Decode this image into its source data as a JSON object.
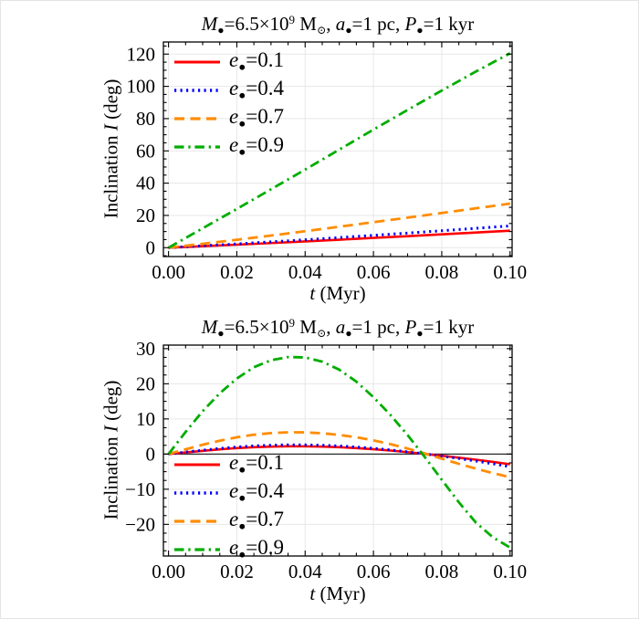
{
  "figure": {
    "background": "#ffffff",
    "frame_color": "#000000",
    "grid_color": "#e7e7e7",
    "zero_line_color": "#2b2b2b",
    "text_color": "#000000"
  },
  "chart_data": [
    {
      "type": "line",
      "title": "M●=6.5×10⁹ M⊙, a●=1 pc, P●=1 kyr",
      "title_tokens": [
        {
          "k": "i",
          "v": "M"
        },
        {
          "k": "sub",
          "v": "●"
        },
        {
          "k": "t",
          "v": "=6.5×10"
        },
        {
          "k": "sup",
          "v": "9"
        },
        {
          "k": "t",
          "v": " M"
        },
        {
          "k": "sub",
          "v": "⊙"
        },
        {
          "k": "t",
          "v": ", "
        },
        {
          "k": "i",
          "v": "a"
        },
        {
          "k": "sub",
          "v": "●"
        },
        {
          "k": "t",
          "v": "=1 pc, "
        },
        {
          "k": "i",
          "v": "P"
        },
        {
          "k": "sub",
          "v": "●"
        },
        {
          "k": "t",
          "v": "=1 kyr"
        }
      ],
      "xlabel": "t (Myr)",
      "xlabel_tokens": [
        {
          "k": "i",
          "v": "t"
        },
        {
          "k": "t",
          "v": "  (Myr)"
        }
      ],
      "ylabel": "Inclination I (deg)",
      "ylabel_tokens": [
        {
          "k": "t",
          "v": "Inclination  "
        },
        {
          "k": "i",
          "v": "I"
        },
        {
          "k": "t",
          "v": " (deg)"
        }
      ],
      "xlim": [
        0,
        0.1
      ],
      "ylim": [
        0,
        120
      ],
      "grid": true,
      "zero_line": false,
      "legend_position": "top-left",
      "x_axis": {
        "ticks": [
          0,
          0.02,
          0.04,
          0.06,
          0.08,
          0.1
        ],
        "labels": [
          "0.00",
          "0.02",
          "0.04",
          "0.06",
          "0.08",
          "0.10"
        ],
        "minor_step": 0.005
      },
      "y_axis": {
        "ticks": [
          0,
          20,
          40,
          60,
          80,
          100,
          120
        ],
        "labels": [
          "0",
          "20",
          "40",
          "60",
          "80",
          "100",
          "120"
        ],
        "minor_step": 5
      },
      "x": [
        0,
        0.01,
        0.02,
        0.03,
        0.04,
        0.05,
        0.06,
        0.07,
        0.08,
        0.09,
        0.1
      ],
      "series": [
        {
          "name": "e●=0.1",
          "label_tokens": [
            {
              "k": "i",
              "v": "e"
            },
            {
              "k": "sub",
              "v": "●"
            },
            {
              "k": "t",
              "v": "=0.1"
            }
          ],
          "color": "#ff0000",
          "dash": "solid",
          "width": 2.6,
          "y": [
            0,
            0.9,
            1.85,
            2.85,
            3.9,
            4.95,
            6.05,
            7.15,
            8.25,
            9.4,
            10.5
          ]
        },
        {
          "name": "e●=0.4",
          "label_tokens": [
            {
              "k": "i",
              "v": "e"
            },
            {
              "k": "sub",
              "v": "●"
            },
            {
              "k": "t",
              "v": "=0.4"
            }
          ],
          "color": "#0000ff",
          "dash": "dotted",
          "width": 3.0,
          "y": [
            0,
            1.15,
            2.35,
            3.6,
            4.9,
            6.25,
            7.65,
            9.05,
            10.5,
            12.0,
            13.5
          ]
        },
        {
          "name": "e●=0.7",
          "label_tokens": [
            {
              "k": "i",
              "v": "e"
            },
            {
              "k": "sub",
              "v": "●"
            },
            {
              "k": "t",
              "v": "=0.7"
            }
          ],
          "color": "#ff8c00",
          "dash": "dashed",
          "width": 2.8,
          "y": [
            0,
            2.4,
            4.9,
            7.5,
            10.2,
            13.0,
            15.8,
            18.6,
            21.5,
            24.4,
            27.3
          ]
        },
        {
          "name": "e●=0.9",
          "label_tokens": [
            {
              "k": "i",
              "v": "e"
            },
            {
              "k": "sub",
              "v": "●"
            },
            {
              "k": "t",
              "v": "=0.9"
            }
          ],
          "color": "#00ad00",
          "dash": "dashdot",
          "width": 2.8,
          "y": [
            0,
            12.0,
            24.0,
            36.2,
            48.4,
            60.8,
            73.2,
            85.4,
            97.4,
            109.2,
            120.5
          ]
        }
      ]
    },
    {
      "type": "line",
      "title": "M●=6.5×10⁹ M⊙, a●=1 pc, P●=1 kyr",
      "title_tokens": [
        {
          "k": "i",
          "v": "M"
        },
        {
          "k": "sub",
          "v": "●"
        },
        {
          "k": "t",
          "v": "=6.5×10"
        },
        {
          "k": "sup",
          "v": "9"
        },
        {
          "k": "t",
          "v": " M"
        },
        {
          "k": "sub",
          "v": "⊙"
        },
        {
          "k": "t",
          "v": ", "
        },
        {
          "k": "i",
          "v": "a"
        },
        {
          "k": "sub",
          "v": "●"
        },
        {
          "k": "t",
          "v": "=1 pc, "
        },
        {
          "k": "i",
          "v": "P"
        },
        {
          "k": "sub",
          "v": "●"
        },
        {
          "k": "t",
          "v": "=1 kyr"
        }
      ],
      "xlabel": "t (Myr)",
      "xlabel_tokens": [
        {
          "k": "i",
          "v": "t"
        },
        {
          "k": "t",
          "v": "  (Myr)"
        }
      ],
      "ylabel": "Inclination I (deg)",
      "ylabel_tokens": [
        {
          "k": "t",
          "v": "Inclination  "
        },
        {
          "k": "i",
          "v": "I"
        },
        {
          "k": "t",
          "v": " (deg)"
        }
      ],
      "xlim": [
        0,
        0.1
      ],
      "ylim": [
        -25,
        30
      ],
      "grid": true,
      "zero_line": true,
      "legend_position": "bottom-left",
      "x_axis": {
        "ticks": [
          0,
          0.02,
          0.04,
          0.06,
          0.08,
          0.1
        ],
        "labels": [
          "0.00",
          "0.02",
          "0.04",
          "0.06",
          "0.08",
          "0.10"
        ],
        "minor_step": 0.005
      },
      "y_axis": {
        "ticks": [
          -20,
          -10,
          0,
          10,
          20,
          30
        ],
        "labels": [
          "−20",
          "−10",
          "0",
          "10",
          "20",
          "30"
        ],
        "minor_step": 2.5
      },
      "x": [
        0,
        0.005,
        0.01,
        0.015,
        0.02,
        0.025,
        0.03,
        0.035,
        0.04,
        0.045,
        0.05,
        0.055,
        0.06,
        0.065,
        0.07,
        0.075,
        0.08,
        0.085,
        0.09,
        0.095,
        0.1
      ],
      "series": [
        {
          "name": "e●=0.1",
          "label_tokens": [
            {
              "k": "i",
              "v": "e"
            },
            {
              "k": "sub",
              "v": "●"
            },
            {
              "k": "t",
              "v": "=0.1"
            }
          ],
          "color": "#ff0000",
          "dash": "solid",
          "width": 2.6,
          "y": [
            0,
            0.47,
            0.93,
            1.35,
            1.7,
            1.96,
            2.13,
            2.21,
            2.2,
            2.12,
            1.95,
            1.7,
            1.38,
            1.0,
            0.55,
            0.05,
            -0.47,
            -1.02,
            -1.6,
            -2.23,
            -2.9
          ]
        },
        {
          "name": "e●=0.4",
          "label_tokens": [
            {
              "k": "i",
              "v": "e"
            },
            {
              "k": "sub",
              "v": "●"
            },
            {
              "k": "t",
              "v": "=0.4"
            }
          ],
          "color": "#0000ff",
          "dash": "dotted",
          "width": 3.0,
          "y": [
            0,
            0.56,
            1.1,
            1.6,
            2.02,
            2.33,
            2.53,
            2.62,
            2.61,
            2.51,
            2.31,
            2.01,
            1.63,
            1.17,
            0.63,
            0.04,
            -0.58,
            -1.25,
            -1.98,
            -2.76,
            -3.6
          ]
        },
        {
          "name": "e●=0.7",
          "label_tokens": [
            {
              "k": "i",
              "v": "e"
            },
            {
              "k": "sub",
              "v": "●"
            },
            {
              "k": "t",
              "v": "=0.7"
            }
          ],
          "color": "#ff8c00",
          "dash": "dashed",
          "width": 2.8,
          "y": [
            0,
            1.35,
            2.65,
            3.8,
            4.78,
            5.5,
            5.97,
            6.2,
            6.18,
            5.92,
            5.45,
            4.78,
            3.9,
            2.82,
            1.57,
            0.18,
            -1.3,
            -2.78,
            -4.15,
            -5.42,
            -6.6
          ]
        },
        {
          "name": "e●=0.9",
          "label_tokens": [
            {
              "k": "i",
              "v": "e"
            },
            {
              "k": "sub",
              "v": "●"
            },
            {
              "k": "t",
              "v": "=0.9"
            }
          ],
          "color": "#00ad00",
          "dash": "dashdot",
          "width": 2.8,
          "y": [
            0,
            6.3,
            12.2,
            17.3,
            21.5,
            24.7,
            26.7,
            27.6,
            27.5,
            26.3,
            24.0,
            20.6,
            16.2,
            11.1,
            5.4,
            -0.8,
            -7.3,
            -13.7,
            -19.5,
            -23.7,
            -26.6
          ]
        }
      ]
    }
  ]
}
